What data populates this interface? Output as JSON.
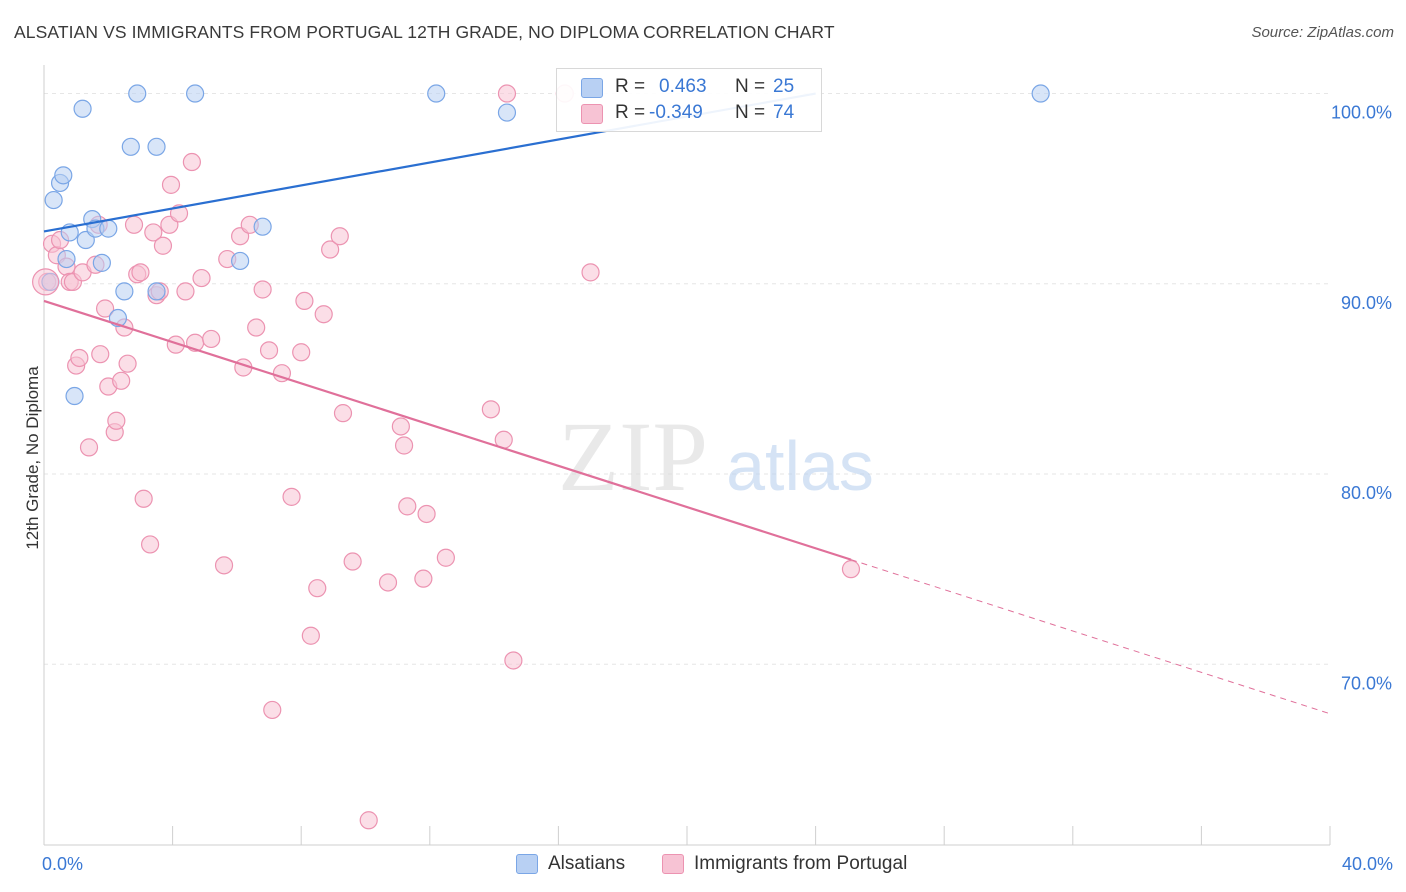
{
  "header": {
    "title": "ALSATIAN VS IMMIGRANTS FROM PORTUGAL 12TH GRADE, NO DIPLOMA CORRELATION CHART",
    "source": "Source: ZipAtlas.com"
  },
  "watermark": {
    "zip": "ZIP",
    "atlas": "atlas"
  },
  "colors": {
    "blue_fill": "#b8d0f3",
    "blue_stroke": "#7aa6e6",
    "blue_line": "#2a6fd1",
    "pink_fill": "#f7c3d4",
    "pink_stroke": "#ec93b1",
    "pink_line": "#e0709a",
    "value_text": "#3a78d4",
    "grid": "#e6e6e6"
  },
  "legend": {
    "rows": [
      {
        "r_label": "R =",
        "r_value": "0.463",
        "n_label": "N =",
        "n_value": "25"
      },
      {
        "r_label": "R =",
        "r_value": "-0.349",
        "n_label": "N =",
        "n_value": "74"
      }
    ],
    "bottom": [
      "Alsatians",
      "Immigrants from Portugal"
    ]
  },
  "chart_data": {
    "type": "scatter",
    "title": "ALSATIAN VS IMMIGRANTS FROM PORTUGAL 12TH GRADE, NO DIPLOMA CORRELATION CHART",
    "xlabel": "",
    "ylabel": "12th Grade, No Diploma",
    "xlim": [
      0,
      40
    ],
    "ylim": [
      60.5,
      101.5
    ],
    "x_tick_labels": [
      "0.0%",
      "40.0%"
    ],
    "y_ticks": [
      70,
      80,
      90,
      100
    ],
    "y_tick_labels": [
      "70.0%",
      "80.0%",
      "90.0%",
      "100.0%"
    ],
    "grid": true,
    "legend_position": "top-center",
    "series": [
      {
        "name": "Alsatians",
        "points": [
          [
            0.2,
            90.1
          ],
          [
            0.3,
            94.4
          ],
          [
            0.5,
            95.3
          ],
          [
            0.6,
            95.7
          ],
          [
            0.7,
            91.3
          ],
          [
            0.8,
            92.7
          ],
          [
            1.2,
            99.2
          ],
          [
            1.3,
            92.3
          ],
          [
            1.5,
            93.4
          ],
          [
            1.6,
            92.9
          ],
          [
            1.8,
            91.1
          ],
          [
            2.0,
            92.9
          ],
          [
            2.3,
            88.2
          ],
          [
            2.5,
            89.6
          ],
          [
            2.7,
            97.2
          ],
          [
            2.9,
            100.0
          ],
          [
            3.5,
            97.2
          ],
          [
            3.5,
            89.6
          ],
          [
            4.7,
            100.0
          ],
          [
            6.1,
            91.2
          ],
          [
            6.8,
            93.0
          ],
          [
            12.2,
            100.0
          ],
          [
            14.4,
            99.0
          ],
          [
            31.0,
            100.0
          ],
          [
            0.95,
            84.1
          ]
        ],
        "trend": {
          "x": [
            0,
            24.0
          ],
          "y": [
            92.75,
            100.0
          ]
        }
      },
      {
        "name": "Immigrants from Portugal",
        "points": [
          [
            0.1,
            90.1
          ],
          [
            0.25,
            92.1
          ],
          [
            0.4,
            91.5
          ],
          [
            0.5,
            92.3
          ],
          [
            0.7,
            90.9
          ],
          [
            0.8,
            90.1
          ],
          [
            0.9,
            90.1
          ],
          [
            1.0,
            85.7
          ],
          [
            1.1,
            86.1
          ],
          [
            1.2,
            90.6
          ],
          [
            1.4,
            81.4
          ],
          [
            1.6,
            91.0
          ],
          [
            1.7,
            93.1
          ],
          [
            1.75,
            86.3
          ],
          [
            1.9,
            88.7
          ],
          [
            2.0,
            84.6
          ],
          [
            2.2,
            82.2
          ],
          [
            2.25,
            82.8
          ],
          [
            2.4,
            84.9
          ],
          [
            2.5,
            87.7
          ],
          [
            2.6,
            85.8
          ],
          [
            2.8,
            93.1
          ],
          [
            2.9,
            90.5
          ],
          [
            3.0,
            90.6
          ],
          [
            3.1,
            78.7
          ],
          [
            3.3,
            76.3
          ],
          [
            3.4,
            92.7
          ],
          [
            3.5,
            89.4
          ],
          [
            3.6,
            89.6
          ],
          [
            3.7,
            92.0
          ],
          [
            3.9,
            93.1
          ],
          [
            3.95,
            95.2
          ],
          [
            4.1,
            86.8
          ],
          [
            4.2,
            93.7
          ],
          [
            4.4,
            89.6
          ],
          [
            4.6,
            96.4
          ],
          [
            4.7,
            86.9
          ],
          [
            4.9,
            90.3
          ],
          [
            5.2,
            87.1
          ],
          [
            5.6,
            75.2
          ],
          [
            5.7,
            91.3
          ],
          [
            6.1,
            92.5
          ],
          [
            6.2,
            85.6
          ],
          [
            6.4,
            93.1
          ],
          [
            6.6,
            87.7
          ],
          [
            6.8,
            89.7
          ],
          [
            7.0,
            86.5
          ],
          [
            7.1,
            67.6
          ],
          [
            7.4,
            85.3
          ],
          [
            7.7,
            78.8
          ],
          [
            8.0,
            86.4
          ],
          [
            8.1,
            89.1
          ],
          [
            8.3,
            71.5
          ],
          [
            8.5,
            74.0
          ],
          [
            8.7,
            88.4
          ],
          [
            8.9,
            91.8
          ],
          [
            9.2,
            92.5
          ],
          [
            9.3,
            83.2
          ],
          [
            9.6,
            75.4
          ],
          [
            10.1,
            61.8
          ],
          [
            10.7,
            74.3
          ],
          [
            11.1,
            82.5
          ],
          [
            11.2,
            81.5
          ],
          [
            11.3,
            78.3
          ],
          [
            11.8,
            74.5
          ],
          [
            11.9,
            77.9
          ],
          [
            12.5,
            75.6
          ],
          [
            13.9,
            83.4
          ],
          [
            14.3,
            81.8
          ],
          [
            14.4,
            100.0
          ],
          [
            14.6,
            70.2
          ],
          [
            16.2,
            100.0
          ],
          [
            17.0,
            90.6
          ],
          [
            25.1,
            75.0
          ]
        ],
        "trend": {
          "x": [
            0,
            25.1
          ],
          "y": [
            89.1,
            75.5
          ]
        },
        "trend_extension": {
          "x": [
            25.1,
            40.0
          ],
          "y": [
            75.5,
            67.4
          ]
        }
      }
    ]
  }
}
